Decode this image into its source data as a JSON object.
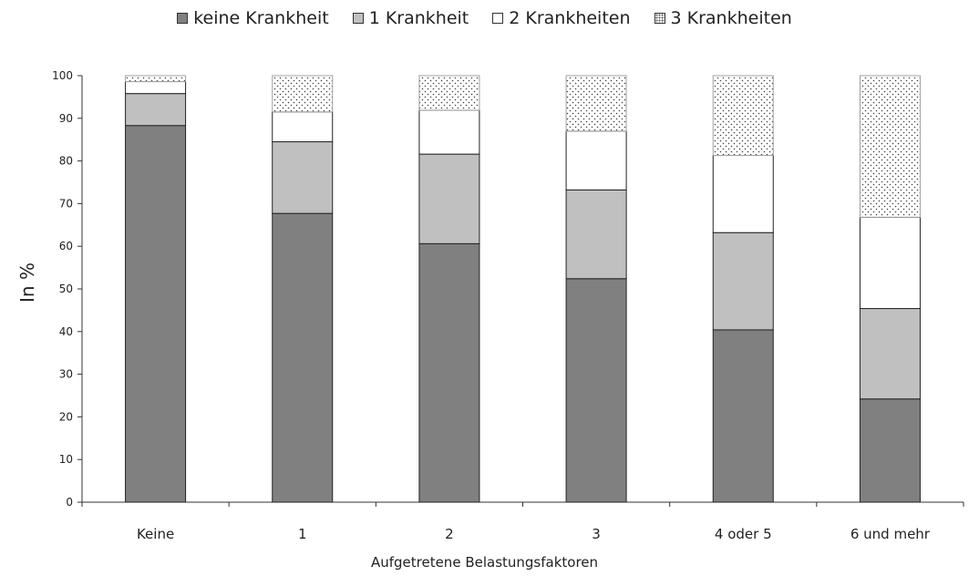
{
  "chart_data": {
    "type": "bar",
    "stacked": true,
    "categories": [
      "Keine",
      "1",
      "2",
      "3",
      "4 oder 5",
      "6 und mehr"
    ],
    "series": [
      {
        "name": "keine Krankheit",
        "values": [
          88.3,
          67.7,
          60.6,
          52.4,
          40.4,
          24.2
        ],
        "color": "#808080",
        "pattern": "solid"
      },
      {
        "name": "1 Krankheit",
        "values": [
          7.5,
          16.8,
          21.0,
          20.8,
          22.8,
          21.2
        ],
        "color": "#c0c0c0",
        "pattern": "solid"
      },
      {
        "name": "2 Krankheiten",
        "values": [
          2.8,
          7.0,
          10.3,
          13.8,
          18.1,
          21.4
        ],
        "color": "#ffffff",
        "pattern": "solid"
      },
      {
        "name": "3 Krankheiten",
        "values": [
          1.4,
          8.5,
          8.1,
          13.0,
          18.7,
          33.2
        ],
        "color": "#ffffff",
        "pattern": "dots"
      }
    ],
    "ylabel": "In %",
    "xlabel": "Aufgetretene Belastungsfaktoren",
    "ylim": [
      0,
      100
    ],
    "yticks": [
      0,
      10,
      20,
      30,
      40,
      50,
      60,
      70,
      80,
      90,
      100
    ],
    "grid": false,
    "legend": "top-center"
  }
}
